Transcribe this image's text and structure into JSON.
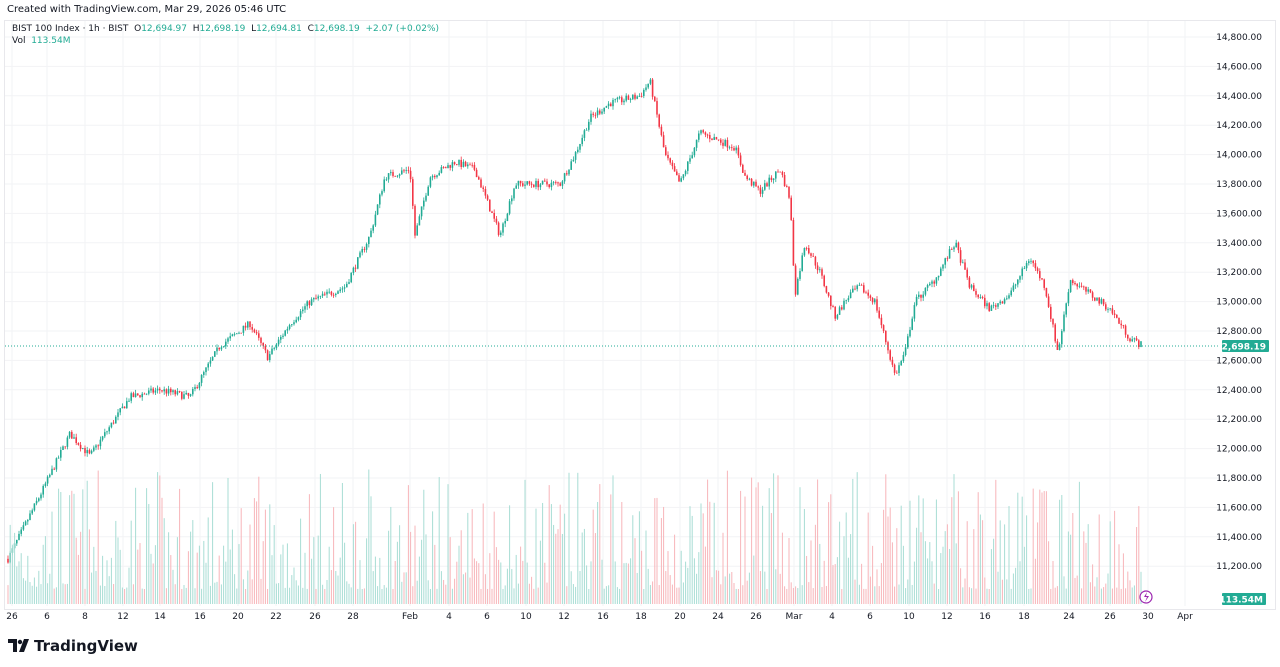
{
  "header": {
    "created": "Created with TradingView.com, Mar 29, 2026 05:46 UTC"
  },
  "legend": {
    "symbol": "BIST 100 Index · 1h · BIST",
    "o_label": "O",
    "o": "12,694.97",
    "h_label": "H",
    "h": "12,698.19",
    "l_label": "L",
    "l": "12,694.81",
    "c_label": "C",
    "c": "12,698.19",
    "change": "+2.07 (+0.02%)",
    "vol_label": "Vol",
    "vol": "113.54M"
  },
  "brand": "TradingView",
  "colors": {
    "up": "#22ab94",
    "down": "#f23645",
    "vol_up": "#a8ddd4",
    "vol_down": "#f7b5ba",
    "price_line": "#22ab94",
    "lightning": "#9c27b0"
  },
  "chart_data": {
    "type": "candlestick",
    "timeframe": "1h",
    "ylim": [
      11000,
      14800
    ],
    "y_ticks": [
      "14,800.00",
      "14,600.00",
      "14,400.00",
      "14,200.00",
      "14,000.00",
      "13,800.00",
      "13,600.00",
      "13,400.00",
      "13,200.00",
      "13,000.00",
      "12,800.00",
      "12,600.00",
      "12,400.00",
      "12,200.00",
      "12,000.00",
      "11,800.00",
      "11,600.00",
      "11,400.00",
      "11,200.00"
    ],
    "x_ticks": [
      "26",
      "6",
      "8",
      "12",
      "14",
      "16",
      "20",
      "22",
      "26",
      "28",
      "Feb",
      "4",
      "6",
      "10",
      "12",
      "16",
      "18",
      "20",
      "24",
      "26",
      "Mar",
      "4",
      "6",
      "10",
      "12",
      "16",
      "18",
      "24",
      "26",
      "30",
      "Apr"
    ],
    "close_path": [
      [
        "Jan 5",
        11250
      ],
      [
        "Jan 6",
        11750
      ],
      [
        "Jan 7",
        12100
      ],
      [
        "Jan 8",
        11950
      ],
      [
        "Jan 12",
        12350
      ],
      [
        "Jan 14",
        12400
      ],
      [
        "Jan 15",
        12350
      ],
      [
        "Jan 19",
        12700
      ],
      [
        "Jan 20",
        12850
      ],
      [
        "Jan 21",
        12620
      ],
      [
        "Jan 22",
        12850
      ],
      [
        "Jan 26",
        13000
      ],
      [
        "Jan 27",
        13100
      ],
      [
        "Jan 28",
        13450
      ],
      [
        "Jan 29",
        13850
      ],
      [
        "Feb 2",
        13900
      ],
      [
        "Feb 2",
        13450
      ],
      [
        "Feb 3",
        13850
      ],
      [
        "Feb 4",
        13950
      ],
      [
        "Feb 5",
        13900
      ],
      [
        "Feb 6",
        13450
      ],
      [
        "Feb 9",
        13800
      ],
      [
        "Feb 10",
        13800
      ],
      [
        "Feb 11",
        13800
      ],
      [
        "Feb 12",
        14000
      ],
      [
        "Feb 13",
        14250
      ],
      [
        "Feb 16",
        14350
      ],
      [
        "Feb 17",
        14400
      ],
      [
        "Feb 18",
        14500
      ],
      [
        "Feb 18",
        14000
      ],
      [
        "Feb 19",
        13800
      ],
      [
        "Feb 20",
        14150
      ],
      [
        "Feb 24",
        14050
      ],
      [
        "Feb 25",
        13850
      ],
      [
        "Feb 26",
        13750
      ],
      [
        "Feb 27",
        13900
      ],
      [
        "Mar 2",
        13700
      ],
      [
        "Mar 2",
        13050
      ],
      [
        "Mar 3",
        13400
      ],
      [
        "Mar 3",
        13200
      ],
      [
        "Mar 4",
        12900
      ],
      [
        "Mar 5",
        13050
      ],
      [
        "Mar 6",
        13100
      ],
      [
        "Mar 6",
        13000
      ],
      [
        "Mar 9",
        12500
      ],
      [
        "Mar 9",
        12650
      ],
      [
        "Mar 10",
        13000
      ],
      [
        "Mar 11",
        13150
      ],
      [
        "Mar 12",
        13400
      ],
      [
        "Mar 13",
        13100
      ],
      [
        "Mar 16",
        12950
      ],
      [
        "Mar 17",
        13050
      ],
      [
        "Mar 18",
        13300
      ],
      [
        "Mar 19",
        13100
      ],
      [
        "Mar 20",
        12650
      ],
      [
        "Mar 23",
        13150
      ],
      [
        "Mar 24",
        13050
      ],
      [
        "Mar 25",
        12950
      ],
      [
        "Mar 26",
        12750
      ],
      [
        "Mar 27",
        12698.19
      ]
    ],
    "last_price": "12,698.19",
    "last_volume": "113.54M"
  }
}
